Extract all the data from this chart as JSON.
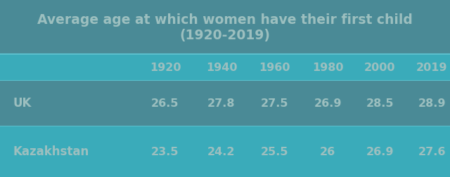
{
  "title_line1": "Average age at which women have their first child",
  "title_line2": "(1920-2019)",
  "title_color": "#9cbfbf",
  "text_color": "#9cbfbf",
  "bg_dark": "#4a8a96",
  "bg_light": "#3aabba",
  "separator_color": "#5abfcc",
  "columns": [
    "1920",
    "1940",
    "1960",
    "1980",
    "2000",
    "2019"
  ],
  "rows": [
    [
      "UK",
      "26.5",
      "27.8",
      "27.5",
      "26.9",
      "28.5",
      "28.9"
    ],
    [
      "Kazakhstan",
      "23.5",
      "24.2",
      "25.5",
      "26",
      "26.9",
      "27.6"
    ]
  ],
  "figsize": [
    6.4,
    2.53
  ],
  "dpi": 100,
  "title_fontsize": 13.5,
  "cell_fontsize": 11.5,
  "row_label_fontsize": 12
}
